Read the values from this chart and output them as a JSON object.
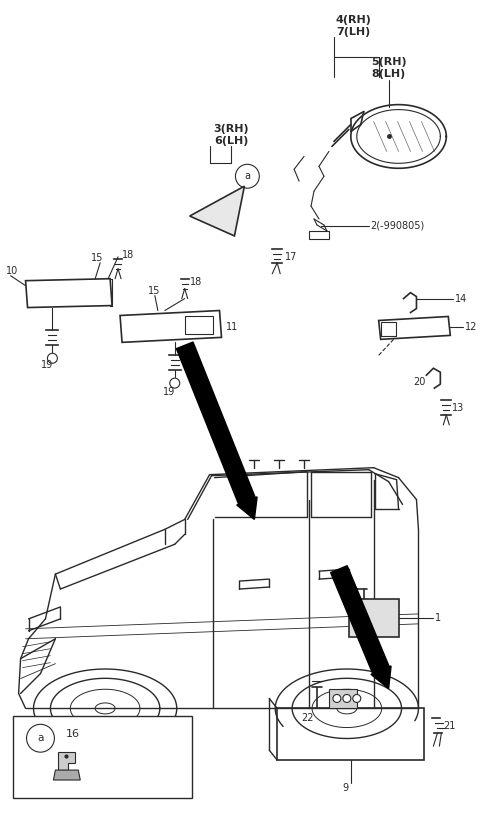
{
  "bg_color": "#ffffff",
  "line_color": "#2a2a2a",
  "fig_width": 4.8,
  "fig_height": 8.18,
  "dpi": 100,
  "parts": {
    "mirror_assembly": {
      "label_47": "4(RH)\n7(LH)",
      "label_58": "5(RH)\n8(LH)",
      "label_2": "2(-990805)"
    },
    "corner_mirror": {
      "label_36": "3(RH)\n6(LH)"
    }
  }
}
